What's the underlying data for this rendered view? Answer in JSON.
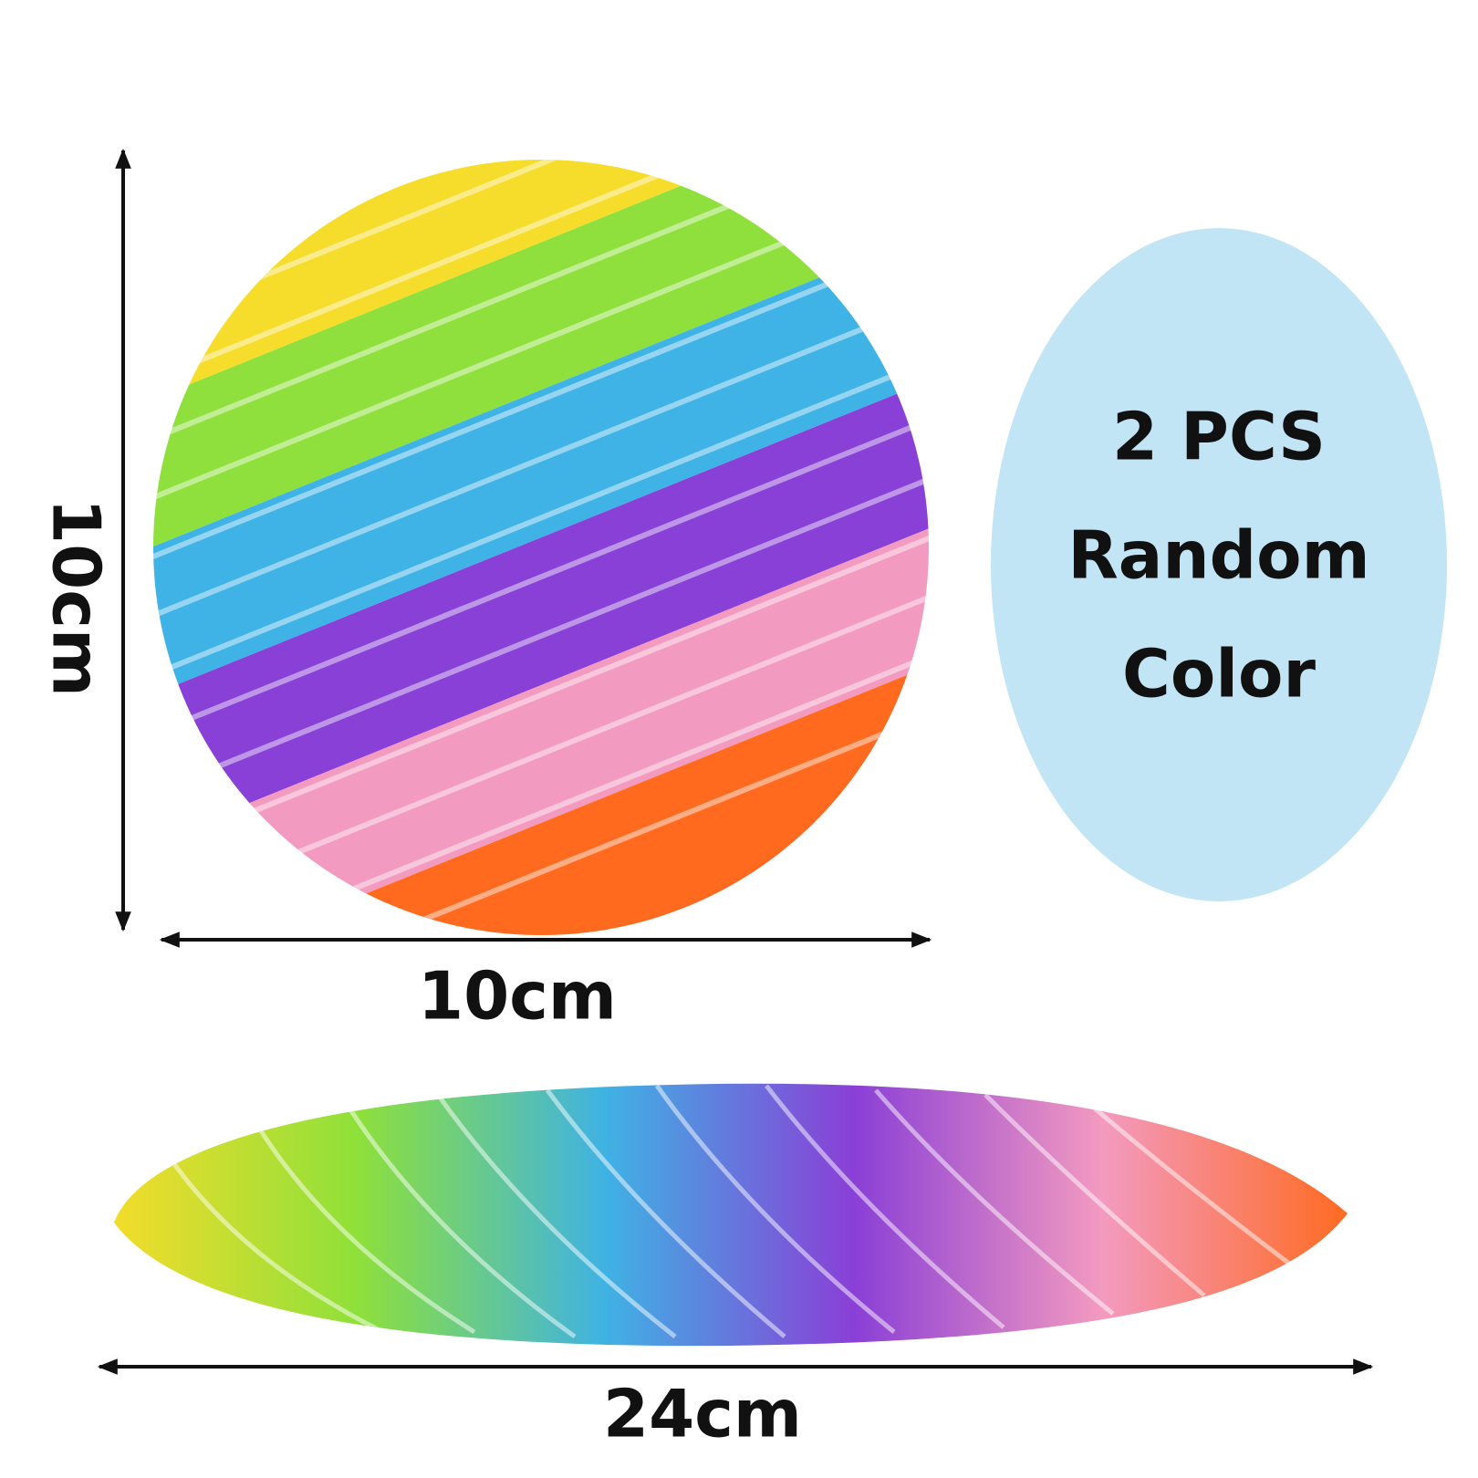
{
  "dimensions": {
    "height": "10cm",
    "width": "10cm",
    "stretched_length": "24cm"
  },
  "badge": {
    "lines": [
      "2 PCS",
      "Random",
      "Color"
    ]
  }
}
